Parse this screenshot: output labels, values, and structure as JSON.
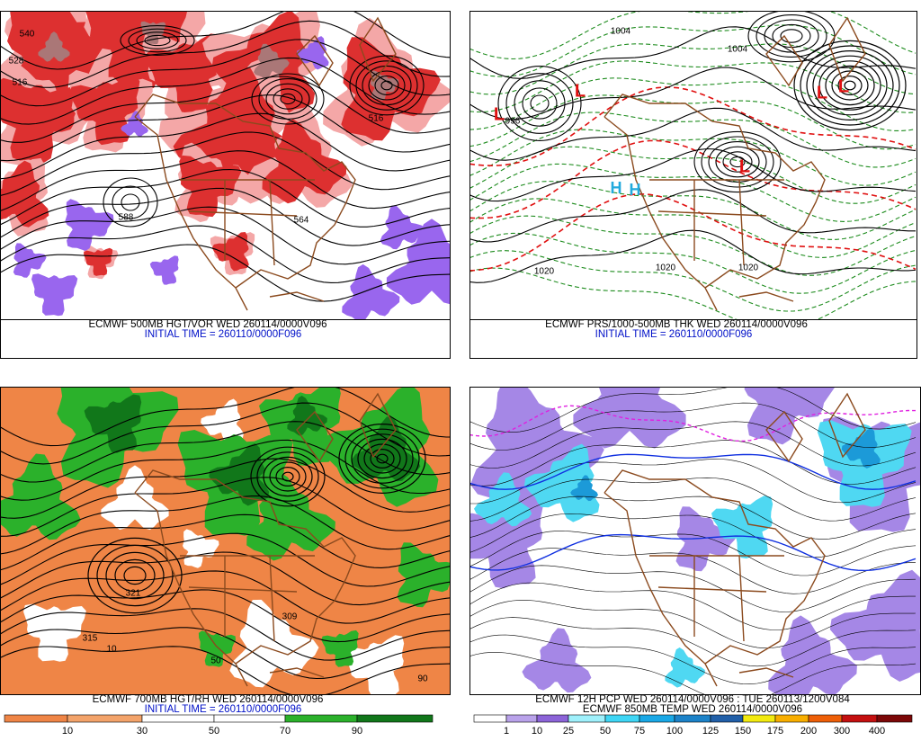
{
  "panels": [
    {
      "caption": "ECMWF 500MB HGT/VOR WED 260114/0000V096",
      "initial_time": "INITIAL TIME = 260110/0000F096",
      "map_labels": [
        "540",
        "528",
        "516",
        "588",
        "564",
        "516"
      ]
    },
    {
      "caption": "ECMWF PRS/1000-500MB THK WED 260114/0000V096",
      "initial_time": "INITIAL TIME = 260110/0000F096",
      "map_labels": [
        "1004",
        "996",
        "1020",
        "1020",
        "1020",
        "1004"
      ],
      "lows": [
        "L",
        "L",
        "L",
        "L",
        "L"
      ],
      "highs": [
        "H",
        "H"
      ]
    },
    {
      "caption": "ECMWF 700MB HGT/RH WED 260114/0000V096",
      "initial_time": "INITIAL TIME = 260110/0000F096",
      "map_labels": [
        "321",
        "309",
        "315",
        "10",
        "50",
        "90"
      ],
      "colorbar": {
        "labels": [
          10,
          30,
          50,
          70,
          90
        ],
        "colors": [
          "#ef8546",
          "#f3a36a",
          "#ffffff",
          "#ffffff",
          "#2bb12b",
          "#11771a"
        ]
      }
    },
    {
      "caption": "ECMWF 12H PCP WED 260114/0000V096 : TUE 260113/1200V084",
      "subcaption": "ECMWF 850MB TEMP WED 260114/0000V096",
      "colorbar": {
        "labels": [
          1,
          10,
          25,
          50,
          75,
          100,
          125,
          150,
          175,
          200,
          300,
          400
        ],
        "colors": [
          "#ffffff",
          "#b9a2ea",
          "#8c64d8",
          "#9ff0fb",
          "#3fd6f5",
          "#1aa8e6",
          "#1c82c8",
          "#215fa8",
          "#f2ea10",
          "#f8ae00",
          "#ee5f08",
          "#c41010",
          "#7c0808"
        ]
      }
    }
  ]
}
